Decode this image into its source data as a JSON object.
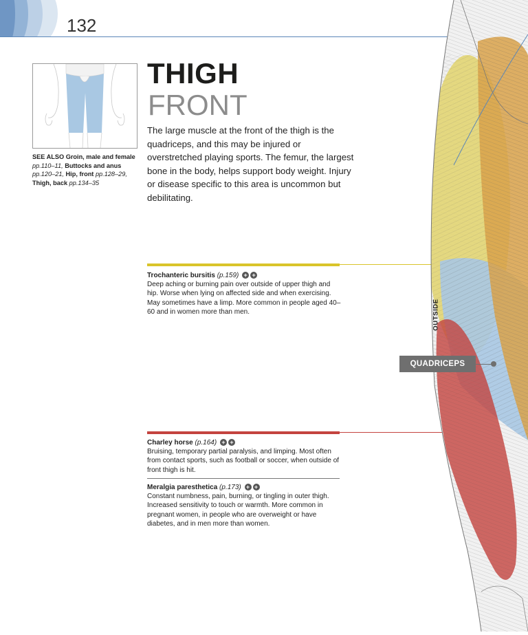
{
  "page": {
    "number": "132"
  },
  "header": {
    "title": "THIGH",
    "subtitle": "FRONT"
  },
  "intro": "The large muscle at the front of the thigh is the quadriceps, and this may be injured or overstretched playing sports. The femur, the largest bone in the body, helps support body weight. Injury or disease specific to this area is uncommon but debilitating.",
  "see_also": {
    "label": "SEE ALSO",
    "items": [
      {
        "name": "Groin, male and female",
        "pages": "pp.110–11,"
      },
      {
        "name": "Buttocks and anus",
        "pages": "pp.120–21,"
      },
      {
        "name": "Hip, front",
        "pages": "pp.128–29,"
      },
      {
        "name": "Thigh, back",
        "pages": "pp.134–35"
      }
    ]
  },
  "entries": [
    {
      "title": "Trochanteric bursitis",
      "ref": "(p.159)",
      "text": "Deep aching or burning pain over outside of upper thigh and hip. Worse when lying on affected side and when exercising. May sometimes have a limp. More common in people aged 40–60 and in women more than men."
    },
    {
      "title": "Charley horse",
      "ref": "(p.164)",
      "text": "Bruising, temporary partial paralysis, and limping. Most often from contact sports, such as football or soccer, when outside of front thigh is hit."
    },
    {
      "title": "Meralgia paresthetica",
      "ref": "(p.173)",
      "text": "Constant numbness, pain, burning, or tingling in outer thigh. Increased sensitivity to touch or warmth. More common in pregnant women, in people who are overweight or have diabetes, and in men more than women."
    }
  ],
  "badges": {
    "plus": "+"
  },
  "labels": {
    "outside": "OUTSIDE",
    "quadriceps": "QUADRICEPS"
  },
  "colors": {
    "accent_blue": "#5a86b8",
    "yellow": "#d9c42a",
    "red": "#c4433f",
    "tan": "#d9a24a",
    "light_blue": "#a9c8e3"
  }
}
